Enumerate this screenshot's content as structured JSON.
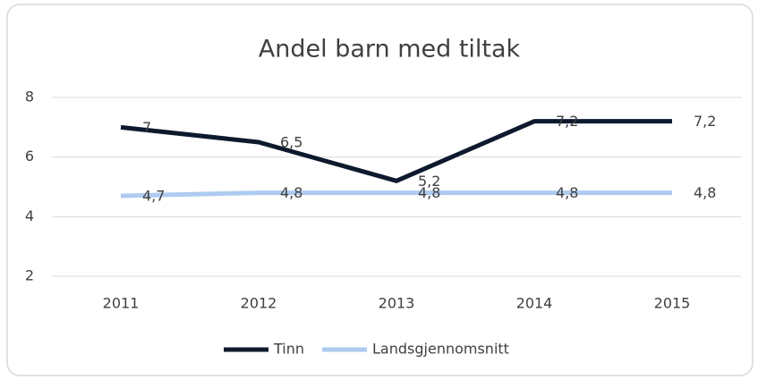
{
  "chart_data": {
    "type": "line",
    "title": "Andel barn med tiltak",
    "categories": [
      "2011",
      "2012",
      "2013",
      "2014",
      "2015"
    ],
    "series": [
      {
        "name": "Tinn",
        "color": "#0d1a2e",
        "values": [
          7,
          6.5,
          5.2,
          7.2,
          7.2
        ],
        "value_labels": [
          "7",
          "6,5",
          "5,2",
          "7,2",
          "7,2"
        ]
      },
      {
        "name": "Landsgjennomsnitt",
        "color": "#aecbf0",
        "values": [
          4.7,
          4.8,
          4.8,
          4.8,
          4.8
        ],
        "value_labels": [
          "4,7",
          "4,8",
          "4,8",
          "4,8",
          "4,8"
        ]
      }
    ],
    "ylim": [
      2,
      8
    ],
    "yticks": [
      2,
      4,
      6,
      8
    ],
    "grid": true,
    "legend": "bottom"
  }
}
